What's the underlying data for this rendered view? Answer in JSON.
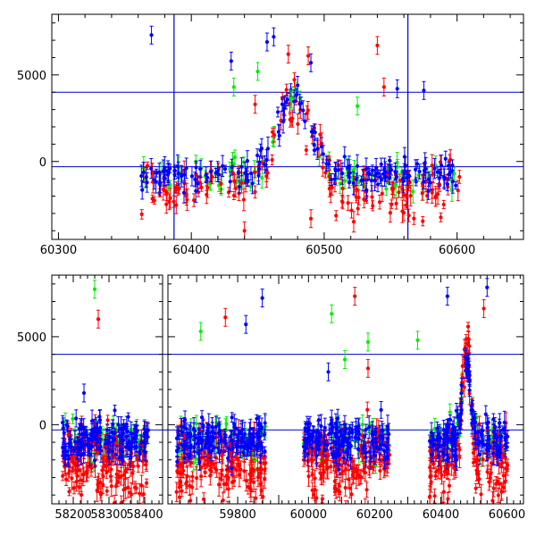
{
  "chart_data": [
    {
      "type": "scatter",
      "panel": "top",
      "xlim": [
        60295,
        60650
      ],
      "ylim": [
        -4500,
        8500
      ],
      "xticks": [
        60300,
        60400,
        60500,
        60600
      ],
      "xtick_labels": [
        "60300",
        "60400",
        "60500",
        "60600"
      ],
      "yticks": [
        0,
        5000
      ],
      "ytick_labels": [
        "0",
        "5000"
      ],
      "grid": false,
      "colors": {
        "red": "#ff0000",
        "green": "#00ee00",
        "blue": "#0000ff",
        "reference_line": "#0000cc"
      },
      "reference_lines": {
        "horizontal": [
          4000,
          -300
        ],
        "vertical": [
          60387,
          60563
        ]
      },
      "series": [
        {
          "color": "blue",
          "points": [
            [
              60370,
              7300
            ],
            [
              60430,
              5800
            ],
            [
              60457,
              6900
            ],
            [
              60462,
              7200
            ],
            [
              60480,
              4400
            ],
            [
              60490,
              5700
            ],
            [
              60555,
              4200
            ],
            [
              60575,
              4100
            ]
          ]
        },
        {
          "color": "red",
          "points": [
            [
              60448,
              3300
            ],
            [
              60473,
              6200
            ],
            [
              60488,
              6100
            ],
            [
              60540,
              6700
            ],
            [
              60545,
              4300
            ],
            [
              60490,
              -3300
            ],
            [
              60440,
              -4000
            ]
          ]
        },
        {
          "color": "green",
          "points": [
            [
              60432,
              4300
            ],
            [
              60450,
              5200
            ],
            [
              60475,
              3600
            ],
            [
              60525,
              3200
            ]
          ]
        }
      ],
      "profile": {
        "x_start": 60362,
        "x_end": 60602,
        "x_peak": 60477,
        "baseline": -800,
        "peak": 3900,
        "width": 17
      }
    },
    {
      "type": "scatter",
      "panel": "bottom",
      "broken_axis": true,
      "ylim": [
        -4500,
        8500
      ],
      "yticks": [
        0,
        5000
      ],
      "ytick_labels": [
        "0",
        "5000"
      ],
      "grid": false,
      "reference_lines": {
        "horizontal": [
          4000,
          -300
        ]
      },
      "segments": [
        {
          "xlim": [
            58140,
            58450
          ],
          "xticks": [
            58200,
            58300,
            58400
          ],
          "xtick_labels": [
            "58200",
            "58300",
            "58400"
          ],
          "data_range": [
            58170,
            58410
          ]
        },
        {
          "xlim": [
            59630,
            59900
          ],
          "xticks": [
            59800
          ],
          "xtick_labels": [
            "59800"
          ],
          "data_range": [
            59650,
            59870
          ]
        },
        {
          "xlim": [
            59910,
            60650
          ],
          "xticks": [
            60000,
            60200,
            60400,
            60600
          ],
          "xtick_labels": [
            "60000",
            "60200",
            "60400",
            "60600"
          ],
          "data_ranges": [
            [
              59985,
              60245
            ],
            [
              60365,
              60602
            ]
          ]
        }
      ],
      "series": [
        {
          "color": "green",
          "points": [
            [
              58260,
              7700
            ],
            [
              59710,
              5300
            ],
            [
              60070,
              6300
            ],
            [
              60110,
              3700
            ],
            [
              60180,
              4700
            ],
            [
              60330,
              4800
            ]
          ]
        },
        {
          "color": "red",
          "points": [
            [
              58270,
              6000
            ],
            [
              59770,
              6100
            ],
            [
              60140,
              7300
            ],
            [
              60530,
              6600
            ],
            [
              60180,
              3200
            ]
          ]
        },
        {
          "color": "blue",
          "points": [
            [
              58230,
              1800
            ],
            [
              59820,
              5700
            ],
            [
              59860,
              7200
            ],
            [
              60420,
              7300
            ],
            [
              60540,
              7800
            ],
            [
              60060,
              3000
            ]
          ]
        }
      ],
      "profile": {
        "x_peak": 60477,
        "baseline": -800,
        "peak": 3900,
        "width": 17
      }
    }
  ]
}
